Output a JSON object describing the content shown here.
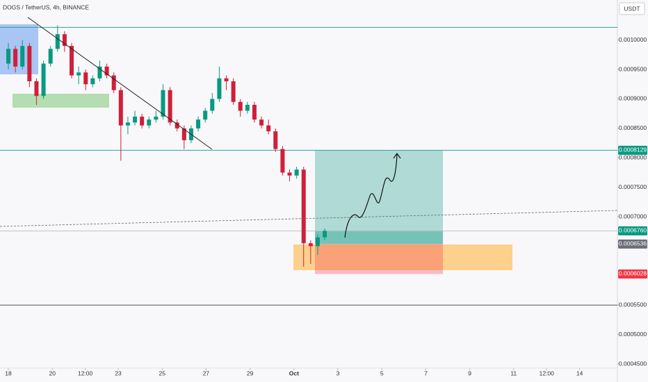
{
  "chart_data": {
    "type": "candlestick",
    "title": "DOGS / TetherUS, 4h, BINANCE",
    "currency": "USDT",
    "up_color": "#089981",
    "down_color": "#cf1f3a",
    "grid": false,
    "x": [
      0,
      0.32,
      0.64,
      0.96,
      1.28,
      1.6,
      1.92,
      2.24,
      2.56,
      2.88,
      3.2,
      3.52,
      3.84,
      4.16,
      4.48,
      4.8,
      5.12,
      5.44,
      5.76,
      6.08,
      6.4,
      6.72,
      7.04,
      7.36,
      7.68,
      8,
      8.32,
      8.64,
      8.96,
      9.28,
      9.6,
      9.92,
      10.24,
      10.56,
      10.88,
      11.2,
      11.52,
      11.84,
      12.16,
      12.48,
      12.8,
      13.12,
      13.44,
      13.76,
      14.08,
      14.4
    ],
    "open": [
      0.00096,
      0.000985,
      0.000955,
      0.00099,
      0.00093,
      0.000905,
      0.00096,
      0.000985,
      0.00101,
      0.00099,
      0.00094,
      0.000945,
      0.000925,
      0.000935,
      0.000955,
      0.00094,
      0.000915,
      0.000855,
      0.00086,
      0.00087,
      0.000855,
      0.000865,
      0.00087,
      0.000915,
      0.00086,
      0.00085,
      0.00083,
      0.00085,
      0.000865,
      0.00088,
      0.0009,
      0.000935,
      0.00093,
      0.000895,
      0.00088,
      0.00089,
      0.000865,
      0.000855,
      0.000845,
      0.000815,
      0.000775,
      0.00077,
      0.00078,
      0.000655,
      0.00065,
      0.000665
    ],
    "high": [
      0.000995,
      0.00099,
      0.001,
      0.000995,
      0.000935,
      0.000965,
      0.00099,
      0.001025,
      0.001015,
      0.000995,
      0.000955,
      0.00095,
      0.00094,
      0.000965,
      0.00096,
      0.000945,
      0.00092,
      0.00087,
      0.00088,
      0.000875,
      0.00087,
      0.00088,
      0.000925,
      0.00092,
      0.000865,
      0.000855,
      0.000855,
      0.00087,
      0.000885,
      0.00091,
      0.000955,
      0.00094,
      0.000935,
      0.0009,
      0.000895,
      0.000895,
      0.00087,
      0.000865,
      0.00085,
      0.00082,
      0.00078,
      0.000785,
      0.000785,
      0.00066,
      0.00067,
      0.00068
    ],
    "low": [
      0.00095,
      0.000945,
      0.00095,
      0.00092,
      0.00089,
      0.0009,
      0.000955,
      0.00098,
      0.00098,
      0.000935,
      0.000925,
      0.000915,
      0.00092,
      0.00093,
      0.000935,
      0.00091,
      0.000795,
      0.00084,
      0.000855,
      0.00085,
      0.00085,
      0.00086,
      0.000865,
      0.000855,
      0.000845,
      0.000815,
      0.000825,
      0.000845,
      0.00086,
      0.000875,
      0.000895,
      0.000915,
      0.00089,
      0.00087,
      0.000875,
      0.00086,
      0.00085,
      0.00084,
      0.00081,
      0.00077,
      0.00076,
      0.000765,
      0.000615,
      0.00062,
      0.000635,
      0.00066
    ],
    "close": [
      0.000985,
      0.000955,
      0.00099,
      0.00093,
      0.000905,
      0.00096,
      0.000985,
      0.00101,
      0.00099,
      0.00094,
      0.000945,
      0.000925,
      0.000935,
      0.000955,
      0.00094,
      0.000915,
      0.000855,
      0.00086,
      0.00087,
      0.000855,
      0.000865,
      0.00087,
      0.000915,
      0.00086,
      0.00085,
      0.00083,
      0.00085,
      0.000865,
      0.00088,
      0.0009,
      0.000935,
      0.00093,
      0.000895,
      0.00088,
      0.00089,
      0.000865,
      0.000855,
      0.000845,
      0.000815,
      0.000775,
      0.00077,
      0.00078,
      0.000655,
      0.00065,
      0.000665,
      0.000676
    ],
    "xlim": [
      -0.38,
      27.72
    ],
    "ylim": [
      0.000443,
      0.001068
    ],
    "xticks": [
      {
        "value": 0,
        "label": "18"
      },
      {
        "value": 2,
        "label": "20"
      },
      {
        "value": 3.5,
        "label": "12:00"
      },
      {
        "value": 5,
        "label": "23"
      },
      {
        "value": 7,
        "label": "25"
      },
      {
        "value": 9,
        "label": "27"
      },
      {
        "value": 11,
        "label": "29"
      },
      {
        "value": 13,
        "label": "Oct"
      },
      {
        "value": 15,
        "label": "3"
      },
      {
        "value": 17,
        "label": "5"
      },
      {
        "value": 19,
        "label": "7"
      },
      {
        "value": 21,
        "label": "9"
      },
      {
        "value": 23,
        "label": "11"
      },
      {
        "value": 24.5,
        "label": "12:00"
      },
      {
        "value": 26,
        "label": "14"
      }
    ],
    "yticks": [
      {
        "value": 0.001,
        "label": "0.0010000"
      },
      {
        "value": 0.00095,
        "label": "0.0009500"
      },
      {
        "value": 0.0009,
        "label": "0.0009000"
      },
      {
        "value": 0.00085,
        "label": "0.0008500"
      },
      {
        "value": 0.0008,
        "label": "0.0008000"
      },
      {
        "value": 0.00075,
        "label": "0.0007500"
      },
      {
        "value": 0.0007,
        "label": "0.0007000"
      },
      {
        "value": 0.00055,
        "label": "0.0005500"
      },
      {
        "value": 0.0005,
        "label": "0.0005000"
      },
      {
        "value": 0.00045,
        "label": "0.0004500"
      }
    ],
    "levels": [
      {
        "value": 0.0010215,
        "color": "#26a69a"
      },
      {
        "value": 0.0008129,
        "color": "#26a69a"
      },
      {
        "value": 0.00055,
        "color": "#555555"
      }
    ],
    "price_labels": [
      {
        "value": 0.0008129,
        "label": "0.0008129",
        "color": "#089981"
      },
      {
        "value": 0.000676,
        "label": "0.0006760",
        "color": "#089981"
      },
      {
        "value": 0.0006536,
        "label": "0.0006536",
        "color": "#6b6e76"
      },
      {
        "value": 0.0006028,
        "label": "0.0006028",
        "color": "#f23645"
      }
    ]
  }
}
